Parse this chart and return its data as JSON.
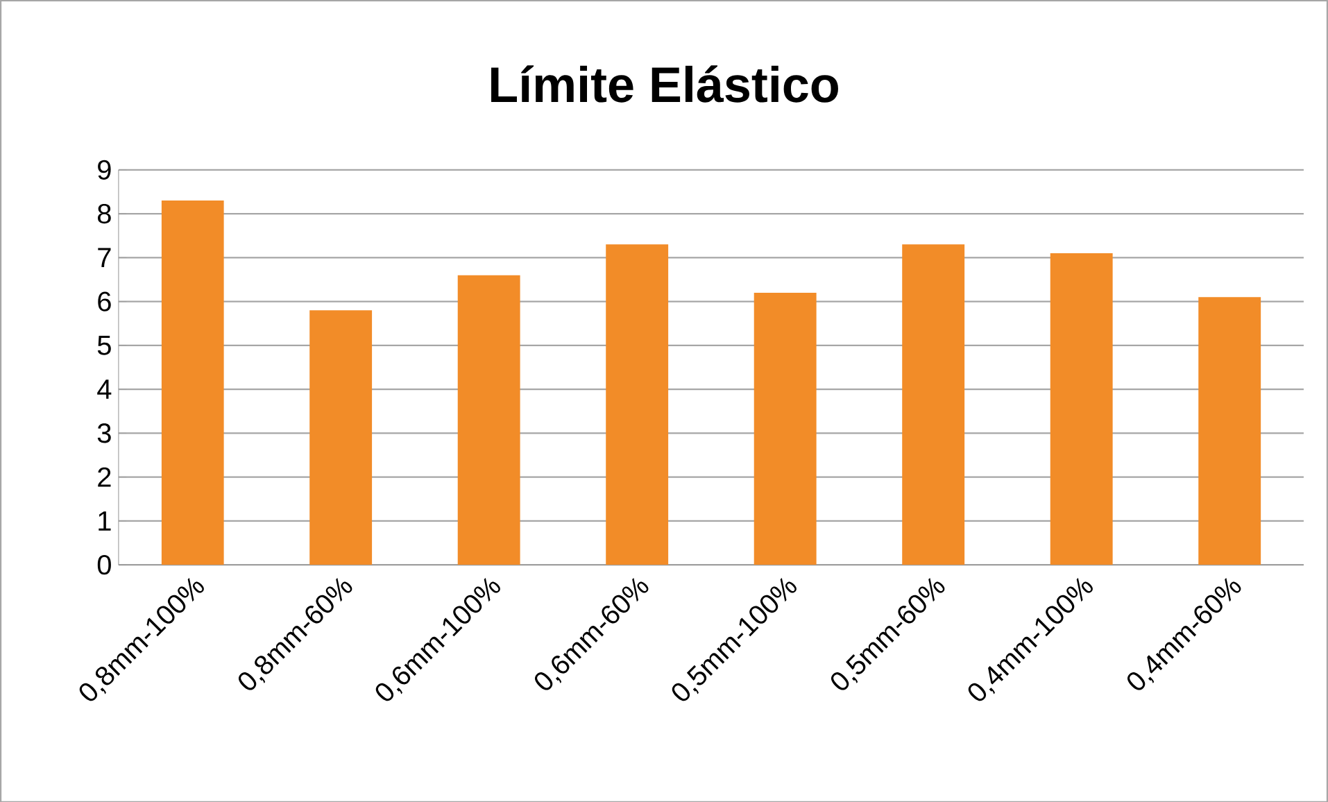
{
  "chart_data": {
    "type": "bar",
    "title": "Límite Elástico",
    "categories": [
      "0,8mm-100%",
      "0,8mm-60%",
      "0,6mm-100%",
      "0,6mm-60%",
      "0,5mm-100%",
      "0,5mm-60%",
      "0,4mm-100%",
      "0,4mm-60%"
    ],
    "values": [
      8.3,
      5.8,
      6.6,
      7.3,
      6.2,
      7.3,
      7.1,
      6.1
    ],
    "color": "#f28c28",
    "ylim": [
      0,
      9
    ],
    "yticks": [
      0,
      1,
      2,
      3,
      4,
      5,
      6,
      7,
      8,
      9
    ],
    "grid": "y"
  }
}
